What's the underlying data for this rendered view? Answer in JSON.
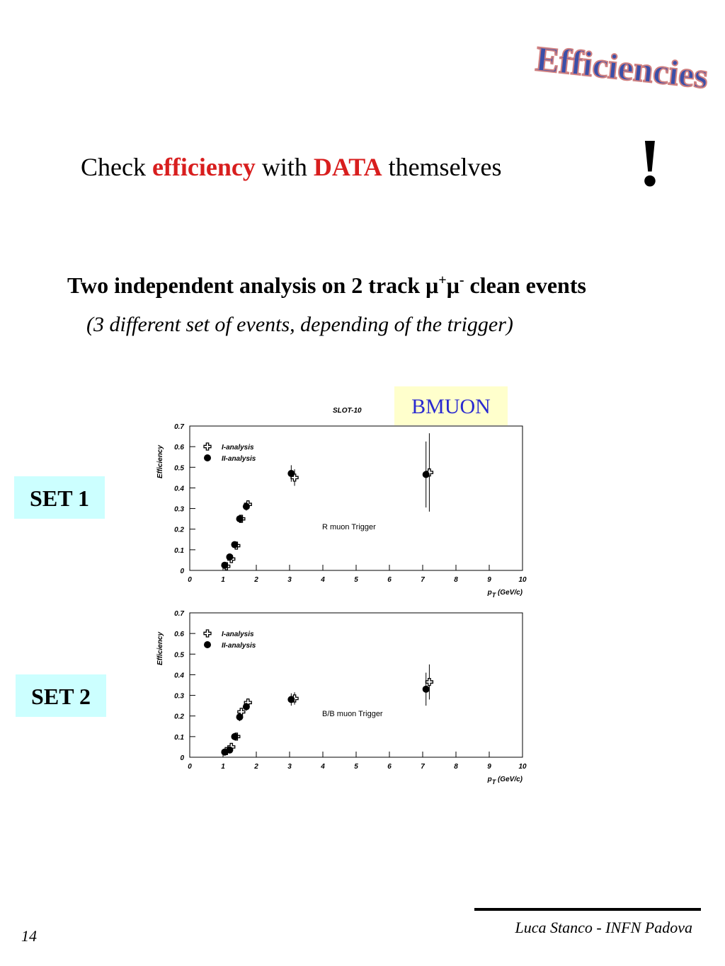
{
  "logo": "Efficiencies",
  "headline": {
    "parts": [
      "Check ",
      "efficiency",
      " with ",
      "DATA",
      " themselves"
    ],
    "mark": "!"
  },
  "subtitle": {
    "parts": [
      "Two independent analysis on 2 track μ",
      "+",
      "μ",
      "-",
      " clean events"
    ],
    "note": "(3 different set of events, depending of the trigger)"
  },
  "slot": "SLOT-10",
  "badge": "BMUON",
  "sets": [
    "SET 1",
    "SET 2"
  ],
  "footer": {
    "page": "14",
    "author": "Luca Stanco - INFN Padova"
  },
  "chart_data": [
    {
      "type": "scatter",
      "annotation": "R muon Trigger",
      "y_label": "Efficiency",
      "x_label": {
        "main": "p",
        "sub": "T",
        "rest": " (GeV/c)"
      },
      "xlim": [
        0,
        10
      ],
      "ylim": [
        0,
        0.7
      ],
      "xticks": [
        0,
        1,
        2,
        3,
        4,
        5,
        6,
        7,
        8,
        9,
        10
      ],
      "yticks": [
        0,
        0.1,
        0.2,
        0.3,
        0.4,
        0.5,
        0.6,
        0.7
      ],
      "grid": false,
      "legend": "upper left",
      "series": [
        {
          "name": "I-analysis",
          "color": "#000000",
          "marker": "cross",
          "x": [
            1.1,
            1.25,
            1.4,
            1.55,
            1.75,
            3.15,
            7.2
          ],
          "values": [
            0.02,
            0.055,
            0.12,
            0.25,
            0.32,
            0.45,
            0.475
          ],
          "errors": [
            0.01,
            0.01,
            0.01,
            0.02,
            0.02,
            0.04,
            0.19
          ]
        },
        {
          "name": "II-analysis",
          "color": "#000000",
          "marker": "circle",
          "x": [
            1.05,
            1.2,
            1.35,
            1.5,
            1.7,
            3.05,
            7.1
          ],
          "values": [
            0.025,
            0.065,
            0.125,
            0.25,
            0.31,
            0.47,
            0.465
          ],
          "errors": [
            0.01,
            0.01,
            0.01,
            0.02,
            0.02,
            0.04,
            0.16
          ]
        }
      ]
    },
    {
      "type": "scatter",
      "annotation": "B/B muon Trigger",
      "y_label": "Efficiency",
      "x_label": {
        "main": "p",
        "sub": "T",
        "rest": " (GeV/c)"
      },
      "xlim": [
        0,
        10
      ],
      "ylim": [
        0,
        0.7
      ],
      "xticks": [
        0,
        1,
        2,
        3,
        4,
        5,
        6,
        7,
        8,
        9,
        10
      ],
      "yticks": [
        0,
        0.1,
        0.2,
        0.3,
        0.4,
        0.5,
        0.6,
        0.7
      ],
      "grid": false,
      "legend": "upper left",
      "series": [
        {
          "name": "I-analysis",
          "color": "#000000",
          "marker": "cross",
          "x": [
            1.1,
            1.25,
            1.4,
            1.55,
            1.75,
            3.15,
            7.2
          ],
          "values": [
            0.03,
            0.05,
            0.1,
            0.22,
            0.265,
            0.285,
            0.365
          ],
          "errors": [
            0.01,
            0.01,
            0.01,
            0.02,
            0.02,
            0.03,
            0.085
          ]
        },
        {
          "name": "II-analysis",
          "color": "#000000",
          "marker": "circle",
          "x": [
            1.05,
            1.2,
            1.35,
            1.5,
            1.7,
            3.05,
            7.1
          ],
          "values": [
            0.025,
            0.035,
            0.1,
            0.195,
            0.245,
            0.28,
            0.33
          ],
          "errors": [
            0.01,
            0.01,
            0.01,
            0.02,
            0.02,
            0.03,
            0.08
          ]
        }
      ]
    }
  ]
}
